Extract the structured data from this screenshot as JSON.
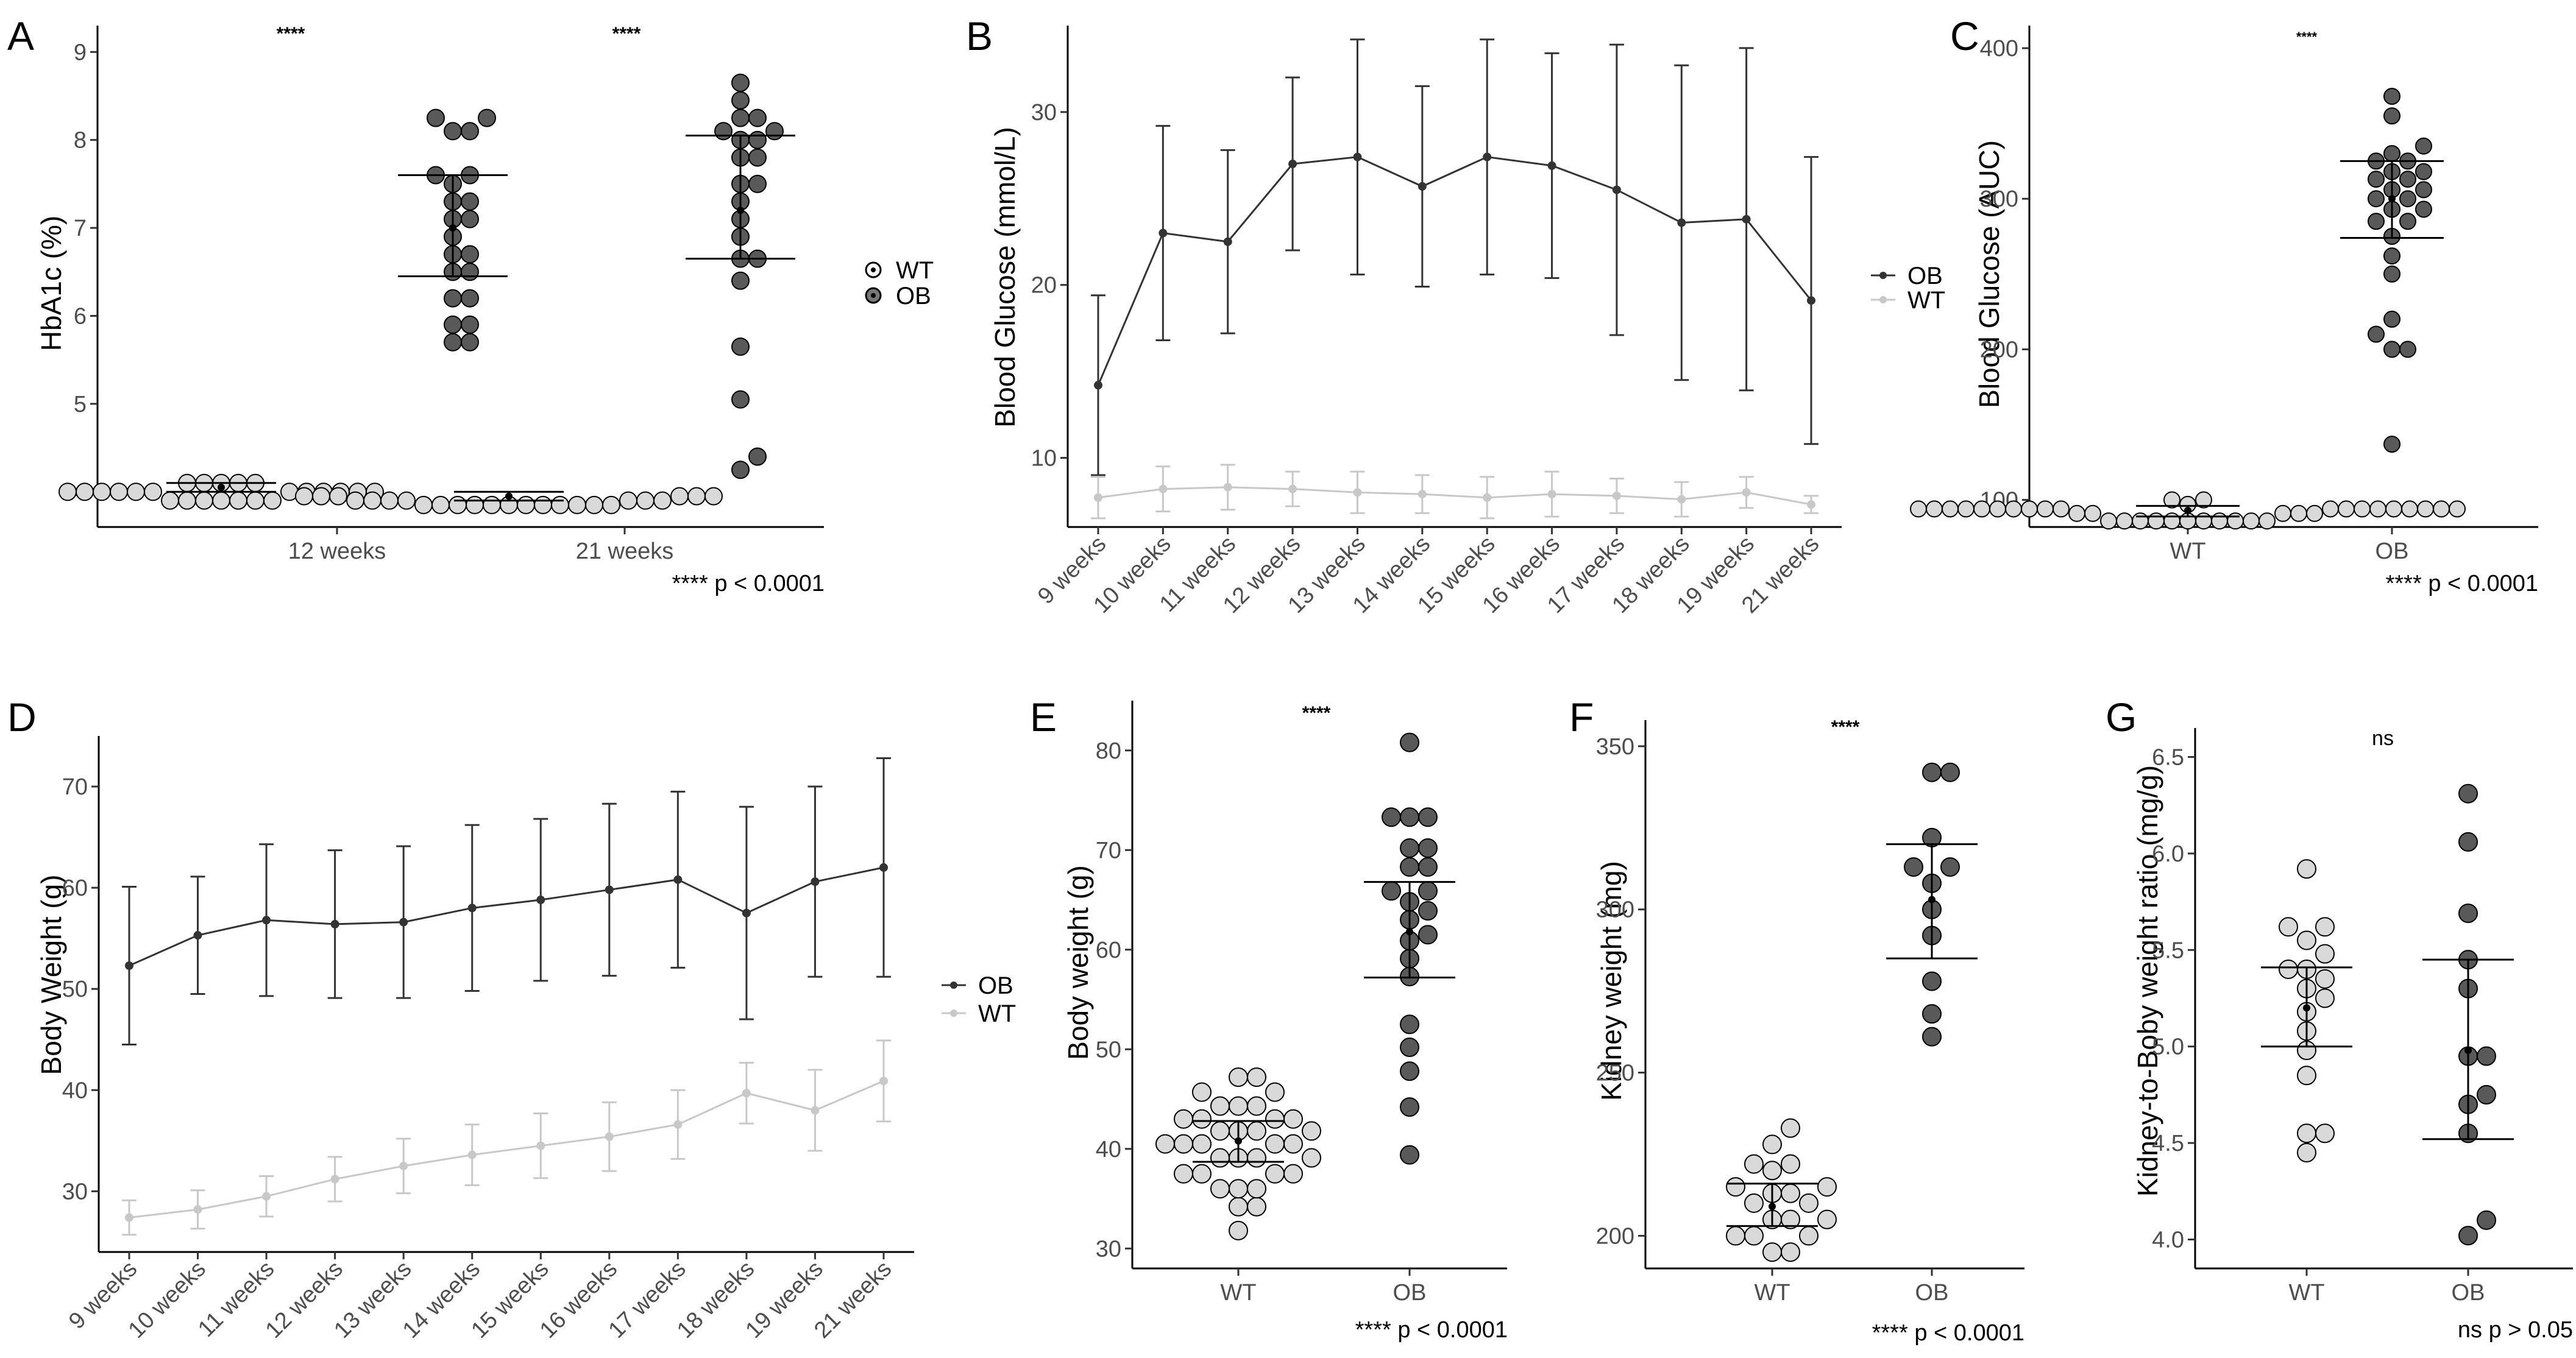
{
  "colors": {
    "wt_fill": "#d9d9d9",
    "ob_fill": "#595959",
    "wt_line": "#c8c8c8",
    "ob_line": "#333333"
  },
  "chart_data": [
    {
      "id": "A",
      "type": "scatter",
      "panel_label": "A",
      "ylabel": "HbA1c (%)",
      "ylim": [
        3.6,
        9.3
      ],
      "yticks": [
        4,
        5,
        6,
        7,
        8,
        9
      ],
      "categories": [
        "12 weeks",
        "21 weeks"
      ],
      "significance": [
        "****",
        "****"
      ],
      "legend": [
        {
          "name": "WT",
          "symbol": "open"
        },
        {
          "name": "OB",
          "symbol": "filled"
        }
      ],
      "note": "**** p < 0.0001",
      "groups": [
        {
          "category": "12 weeks",
          "series": "WT",
          "mean": 4.05,
          "sd": [
            4.0,
            4.1
          ],
          "values": [
            3.9,
            3.9,
            3.9,
            3.9,
            3.9,
            3.9,
            3.9,
            4.0,
            4.0,
            4.0,
            4.0,
            4.0,
            4.0,
            4.0,
            4.0,
            4.0,
            4.0,
            4.0,
            4.0,
            4.1,
            4.1,
            4.1,
            4.1,
            4.1
          ]
        },
        {
          "category": "12 weeks",
          "series": "OB",
          "mean": 7.0,
          "sd": [
            6.45,
            7.6
          ],
          "values": [
            5.7,
            5.7,
            5.9,
            5.9,
            6.2,
            6.2,
            6.5,
            6.5,
            6.7,
            6.7,
            6.9,
            7.1,
            7.1,
            7.3,
            7.3,
            7.5,
            7.6,
            7.6,
            8.1,
            8.1,
            8.25,
            8.25
          ]
        },
        {
          "category": "21 weeks",
          "series": "WT",
          "mean": 3.95,
          "sd": [
            3.9,
            4.0
          ],
          "values": [
            3.85,
            3.85,
            3.85,
            3.85,
            3.85,
            3.85,
            3.85,
            3.85,
            3.85,
            3.85,
            3.85,
            3.85,
            3.9,
            3.9,
            3.9,
            3.9,
            3.9,
            3.9,
            3.9,
            3.95,
            3.95,
            3.95,
            3.95,
            3.95,
            3.95
          ]
        },
        {
          "category": "21 weeks",
          "series": "OB",
          "mean": 7.2,
          "sd": [
            6.65,
            8.05
          ],
          "values": [
            4.25,
            4.4,
            5.05,
            5.65,
            6.4,
            6.65,
            6.65,
            6.9,
            7.1,
            7.3,
            7.5,
            7.5,
            7.8,
            7.8,
            8.0,
            8.0,
            8.1,
            8.1,
            8.25,
            8.25,
            8.45,
            8.65
          ]
        }
      ]
    },
    {
      "id": "B",
      "type": "line",
      "panel_label": "B",
      "ylabel": "Blood Glucose (mmol/L)",
      "ylim": [
        6,
        35
      ],
      "yticks": [
        10,
        20,
        30
      ],
      "x": [
        "9 weeks",
        "10 weeks",
        "11 weeks",
        "12 weeks",
        "13 weeks",
        "14 weeks",
        "15 weeks",
        "16 weeks",
        "17 weeks",
        "18 weeks",
        "19 weeks",
        "21 weeks"
      ],
      "legend": [
        {
          "name": "OB"
        },
        {
          "name": "WT"
        }
      ],
      "series": [
        {
          "name": "OB",
          "values": [
            14.2,
            23.0,
            22.5,
            27.0,
            27.4,
            25.7,
            27.4,
            26.9,
            25.5,
            23.6,
            23.8,
            19.1
          ],
          "err": [
            5.2,
            6.2,
            5.3,
            5.0,
            6.8,
            5.8,
            6.8,
            6.5,
            8.4,
            9.1,
            9.9,
            8.3
          ]
        },
        {
          "name": "WT",
          "values": [
            7.7,
            8.2,
            8.3,
            8.2,
            8.0,
            7.9,
            7.7,
            7.9,
            7.8,
            7.6,
            8.0,
            7.3
          ],
          "err": [
            1.2,
            1.3,
            1.3,
            1.0,
            1.2,
            1.1,
            1.2,
            1.3,
            1.0,
            1.0,
            0.9,
            0.5
          ]
        }
      ]
    },
    {
      "id": "C",
      "type": "scatter",
      "panel_label": "C",
      "ylabel": "Blood Glucose (AUC)",
      "ylim": [
        82,
        415
      ],
      "yticks": [
        100,
        200,
        300,
        400
      ],
      "categories": [
        "WT",
        "OB"
      ],
      "significance": [
        "****"
      ],
      "note": "**** p < 0.0001",
      "groups": [
        {
          "category": "WT",
          "mean": 93,
          "sd": [
            89,
            96
          ],
          "values": [
            86,
            86,
            86,
            86,
            86,
            86,
            86,
            86,
            86,
            86,
            86,
            91,
            91,
            91,
            91,
            91,
            94,
            94,
            94,
            94,
            94,
            94,
            94,
            94,
            94,
            94,
            94,
            94,
            94,
            94,
            94,
            94,
            94,
            94,
            94,
            97,
            100,
            100
          ]
        },
        {
          "category": "OB",
          "mean": 300,
          "sd": [
            274,
            325
          ],
          "values": [
            137,
            200,
            200,
            210,
            220,
            250,
            262,
            275,
            285,
            285,
            293,
            293,
            300,
            300,
            306,
            306,
            313,
            313,
            318,
            318,
            325,
            325,
            330,
            335,
            355,
            368
          ]
        }
      ]
    },
    {
      "id": "D",
      "type": "line",
      "panel_label": "D",
      "ylabel": "Body Weight (g)",
      "ylim": [
        24,
        75
      ],
      "yticks": [
        30,
        40,
        50,
        60,
        70
      ],
      "x": [
        "9 weeks",
        "10 weeks",
        "11 weeks",
        "12 weeks",
        "13 weeks",
        "14 weeks",
        "15 weeks",
        "16 weeks",
        "17 weeks",
        "18 weeks",
        "19 weeks",
        "21 weeks"
      ],
      "legend": [
        {
          "name": "OB"
        },
        {
          "name": "WT"
        }
      ],
      "series": [
        {
          "name": "OB",
          "values": [
            52.3,
            55.3,
            56.8,
            56.4,
            56.6,
            58.0,
            58.8,
            59.8,
            60.8,
            57.5,
            60.6,
            62.0
          ],
          "err": [
            7.8,
            5.8,
            7.5,
            7.3,
            7.5,
            8.2,
            8.0,
            8.5,
            8.7,
            10.5,
            9.4,
            10.8
          ]
        },
        {
          "name": "WT",
          "values": [
            27.4,
            28.2,
            29.5,
            31.2,
            32.5,
            33.6,
            34.5,
            35.4,
            36.6,
            39.7,
            38.0,
            40.9
          ],
          "err": [
            1.7,
            1.9,
            2.0,
            2.2,
            2.7,
            3.0,
            3.2,
            3.4,
            3.4,
            3.0,
            4.0,
            4.0
          ]
        }
      ]
    },
    {
      "id": "E",
      "type": "scatter",
      "panel_label": "E",
      "ylabel": "Body weight (g)",
      "ylim": [
        28,
        85
      ],
      "yticks": [
        30,
        40,
        50,
        60,
        70,
        80
      ],
      "categories": [
        "WT",
        "OB"
      ],
      "significance": [
        "****"
      ],
      "note": "**** p < 0.0001",
      "groups": [
        {
          "category": "WT",
          "mean": 40.8,
          "sd": [
            38.7,
            42.8
          ],
          "values": [
            31.8,
            34.2,
            34.2,
            36.0,
            36.0,
            36.0,
            37.5,
            37.5,
            37.5,
            37.5,
            39.1,
            39.1,
            39.1,
            39.1,
            40.5,
            40.5,
            40.5,
            40.5,
            40.5,
            41.8,
            41.8,
            41.8,
            41.8,
            43.0,
            43.0,
            43.0,
            43.0,
            44.3,
            44.3,
            44.3,
            45.7,
            45.7,
            47.2,
            47.2
          ]
        },
        {
          "category": "OB",
          "mean": 61.8,
          "sd": [
            57.2,
            66.8
          ],
          "values": [
            39.4,
            44.2,
            47.8,
            50.2,
            52.5,
            57.3,
            59.1,
            60.9,
            61.5,
            63.0,
            63.9,
            64.8,
            65.9,
            65.9,
            68.3,
            68.3,
            70.2,
            70.2,
            73.3,
            73.3,
            73.3,
            80.8
          ]
        }
      ]
    },
    {
      "id": "F",
      "type": "scatter",
      "panel_label": "F",
      "ylabel": "Kidney weight (mg)",
      "ylim": [
        190,
        358
      ],
      "yticks": [
        200,
        250,
        300,
        350
      ],
      "categories": [
        "WT",
        "OB"
      ],
      "significance": [
        "****"
      ],
      "note": "**** p < 0.0001",
      "groups": [
        {
          "category": "WT",
          "mean": 209,
          "sd": [
            203,
            216
          ],
          "values": [
            195,
            195,
            200,
            200,
            200,
            205,
            205,
            205,
            210,
            210,
            213,
            213,
            215,
            215,
            220,
            222,
            222,
            228,
            233
          ]
        },
        {
          "category": "OB",
          "mean": 303,
          "sd": [
            285,
            320
          ],
          "values": [
            261,
            268,
            278,
            292,
            300,
            308,
            313,
            313,
            322,
            342,
            342
          ]
        }
      ]
    },
    {
      "id": "G",
      "type": "scatter",
      "panel_label": "G",
      "ylabel": "Kidney-to-Boby weight ratio (mg/g)",
      "ylim": [
        3.85,
        6.65
      ],
      "yticks": [
        4.0,
        4.5,
        5.0,
        5.5,
        6.0,
        6.5
      ],
      "categories": [
        "WT",
        "OB"
      ],
      "significance": [
        "ns"
      ],
      "note": "ns p > 0.05",
      "groups": [
        {
          "category": "WT",
          "mean": 5.2,
          "sd": [
            5.0,
            5.41
          ],
          "values": [
            4.45,
            4.55,
            4.55,
            4.85,
            4.98,
            5.08,
            5.18,
            5.25,
            5.3,
            5.35,
            5.4,
            5.4,
            5.48,
            5.55,
            5.62,
            5.62,
            5.92
          ]
        },
        {
          "category": "OB",
          "mean": 4.98,
          "sd": [
            4.52,
            5.45
          ],
          "values": [
            4.02,
            4.1,
            4.55,
            4.7,
            4.75,
            4.95,
            4.95,
            5.3,
            5.45,
            5.69,
            6.06,
            6.31
          ]
        }
      ]
    }
  ]
}
